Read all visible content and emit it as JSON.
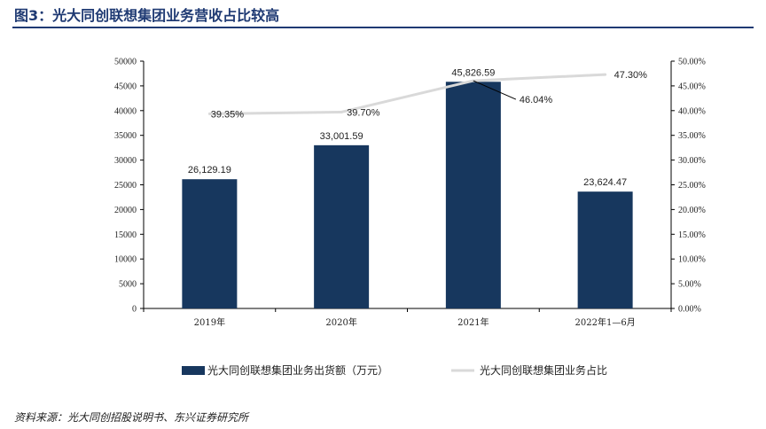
{
  "title": "图3：光大同创联想集团业务营收占比较高",
  "source": "资料来源：光大同创招股说明书、东兴证券研究所",
  "chart_data": {
    "type": "bar+line",
    "categories": [
      "2019年",
      "2020年",
      "2021年",
      "2022年1—6月"
    ],
    "series": [
      {
        "name": "光大同创联想集团业务出货额（万元）",
        "type": "bar",
        "axis": "left",
        "color": "#17375e",
        "values": [
          26129.19,
          33001.59,
          45826.59,
          23624.47
        ],
        "labels": [
          "26,129.19",
          "33,001.59",
          "45,826.59",
          "23,624.47"
        ]
      },
      {
        "name": "光大同创联想集团业务占比",
        "type": "line",
        "axis": "right",
        "color": "#d9d9d9",
        "values": [
          39.35,
          39.7,
          46.04,
          47.3
        ],
        "labels": [
          "39.35%",
          "39.70%",
          "46.04%",
          "47.30%"
        ]
      }
    ],
    "y_left": {
      "min": 0,
      "max": 50000,
      "ticks": [
        "0",
        "5000",
        "10000",
        "15000",
        "20000",
        "25000",
        "30000",
        "35000",
        "40000",
        "45000",
        "50000"
      ]
    },
    "y_right": {
      "min": 0,
      "max": 50,
      "ticks": [
        "0.00%",
        "5.00%",
        "10.00%",
        "15.00%",
        "20.00%",
        "25.00%",
        "30.00%",
        "35.00%",
        "40.00%",
        "45.00%",
        "50.00%"
      ]
    },
    "grid": false,
    "legend": "bottom"
  }
}
